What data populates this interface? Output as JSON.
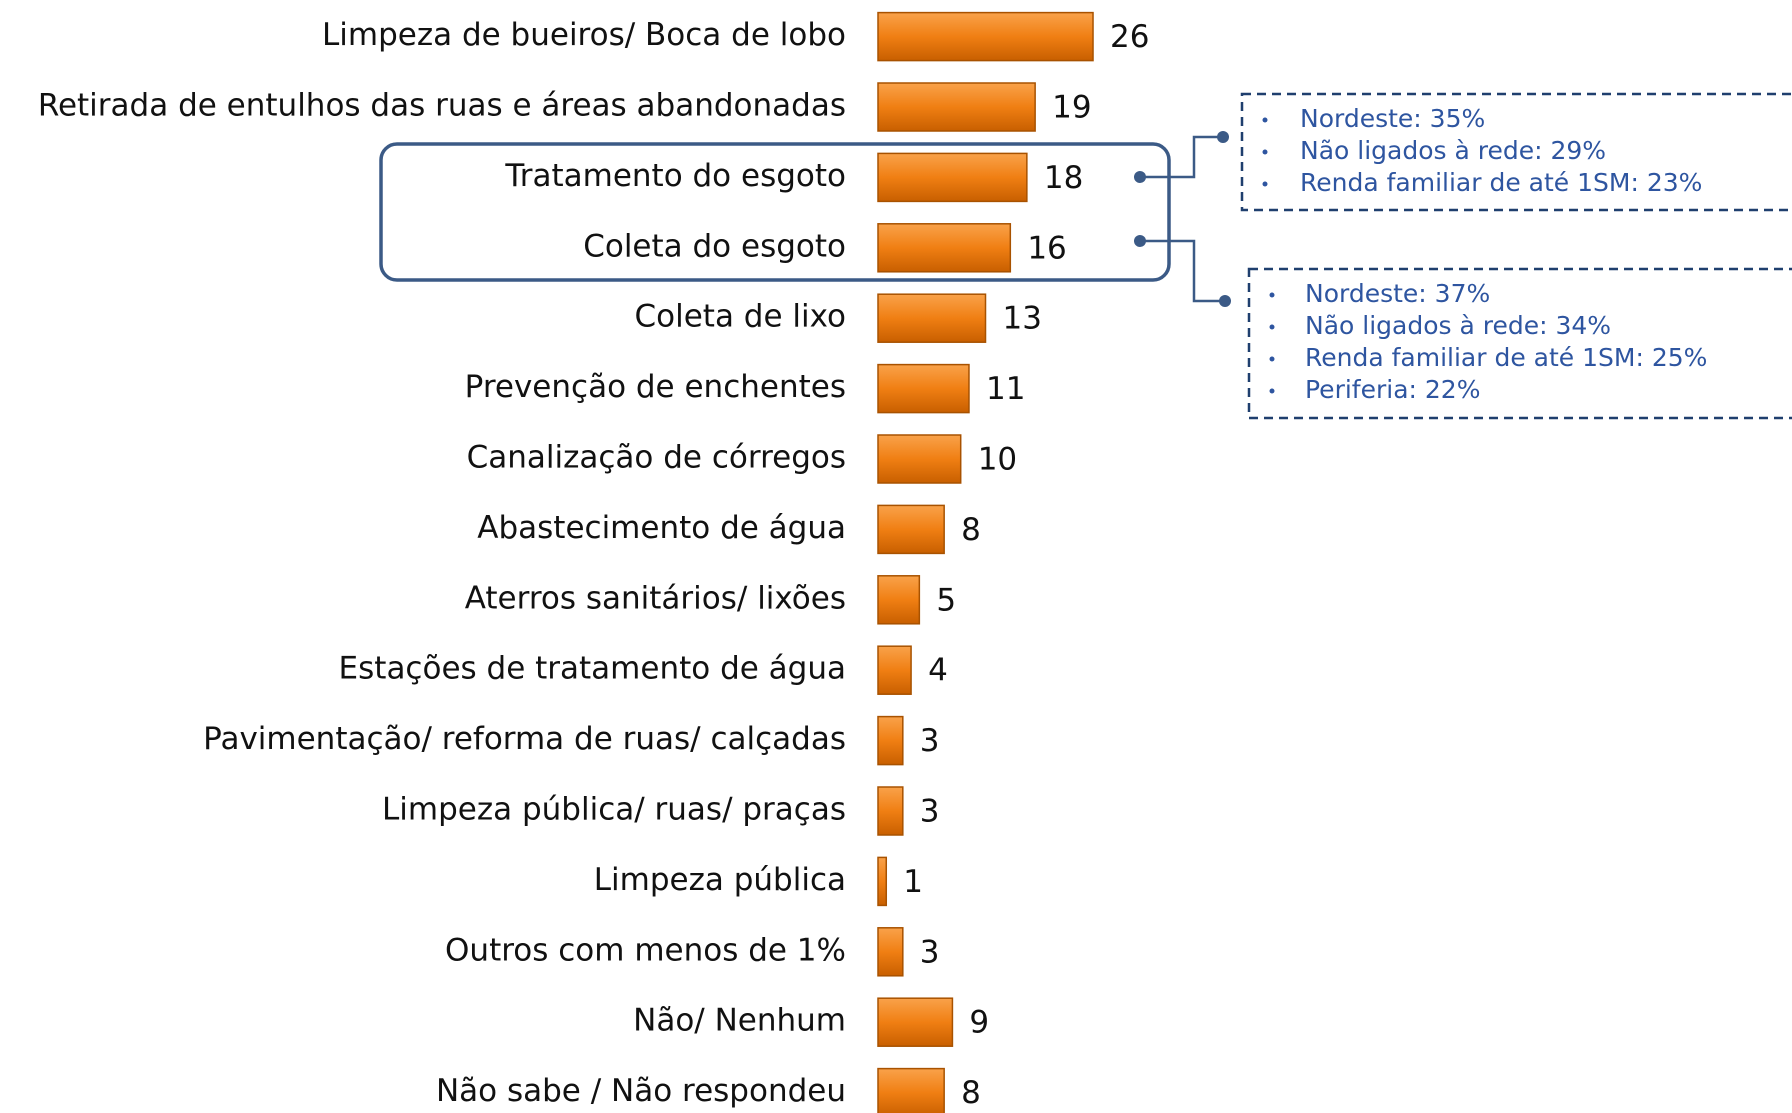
{
  "chart_data": {
    "type": "bar",
    "orientation": "horizontal",
    "color": "#f07f13",
    "categories": [
      "Limpeza de bueiros/ Boca de lobo",
      "Retirada de entulhos das ruas e áreas abandonadas",
      "Tratamento do esgoto",
      "Coleta do esgoto",
      "Coleta de lixo",
      "Prevenção de enchentes",
      "Canalização de córregos",
      "Abastecimento de água",
      "Aterros sanitários/ lixões",
      "Estações de tratamento de água",
      "Pavimentação/ reforma de ruas/ calçadas",
      "Limpeza pública/ ruas/ praças",
      "Limpeza pública",
      "Outros com menos de 1%",
      "Não/ Nenhum",
      "Não sabe / Não respondeu"
    ],
    "values": [
      26,
      19,
      18,
      16,
      13,
      11,
      10,
      8,
      5,
      4,
      3,
      3,
      1,
      3,
      9,
      8
    ],
    "annotations": [
      {
        "items": [
          "Nordeste: 35%",
          "Não ligados à rede: 29%",
          "Renda familiar de até 1SM: 23%"
        ]
      },
      {
        "items": [
          "Nordeste: 37%",
          "Não ligados à rede: 34%",
          "Renda familiar de até 1SM: 25%",
          "Periferia: 22%"
        ]
      }
    ]
  }
}
